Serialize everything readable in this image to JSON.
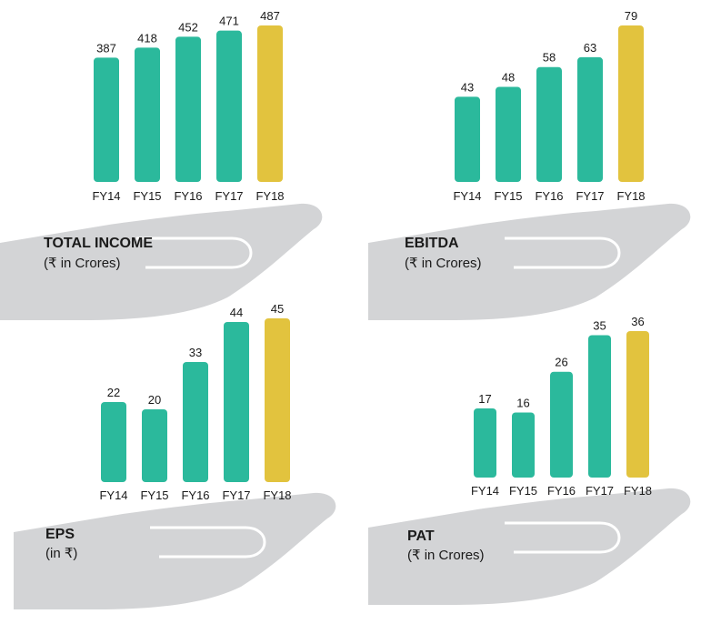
{
  "chart_data": [
    {
      "type": "bar",
      "title": "TOTAL INCOME",
      "subtitle": "(₹ in Crores)",
      "categories": [
        "FY14",
        "FY15",
        "FY16",
        "FY17",
        "FY18"
      ],
      "values": [
        387,
        418,
        452,
        471,
        487
      ],
      "colors": [
        "#2bb99c",
        "#2bb99c",
        "#2bb99c",
        "#2bb99c",
        "#e2c33e"
      ]
    },
    {
      "type": "bar",
      "title": "EBITDA",
      "subtitle": "(₹ in Crores)",
      "categories": [
        "FY14",
        "FY15",
        "FY16",
        "FY17",
        "FY18"
      ],
      "values": [
        43,
        48,
        58,
        63,
        79
      ],
      "colors": [
        "#2bb99c",
        "#2bb99c",
        "#2bb99c",
        "#2bb99c",
        "#e2c33e"
      ]
    },
    {
      "type": "bar",
      "title": "EPS",
      "subtitle": "(in ₹)",
      "categories": [
        "FY14",
        "FY15",
        "FY16",
        "FY17",
        "FY18"
      ],
      "values": [
        22,
        20,
        33,
        44,
        45
      ],
      "colors": [
        "#2bb99c",
        "#2bb99c",
        "#2bb99c",
        "#2bb99c",
        "#e2c33e"
      ]
    },
    {
      "type": "bar",
      "title": "PAT",
      "subtitle": "(₹ in Crores)",
      "categories": [
        "FY14",
        "FY15",
        "FY16",
        "FY17",
        "FY18"
      ],
      "values": [
        17,
        16,
        26,
        35,
        36
      ],
      "colors": [
        "#2bb99c",
        "#2bb99c",
        "#2bb99c",
        "#2bb99c",
        "#e2c33e"
      ]
    }
  ]
}
